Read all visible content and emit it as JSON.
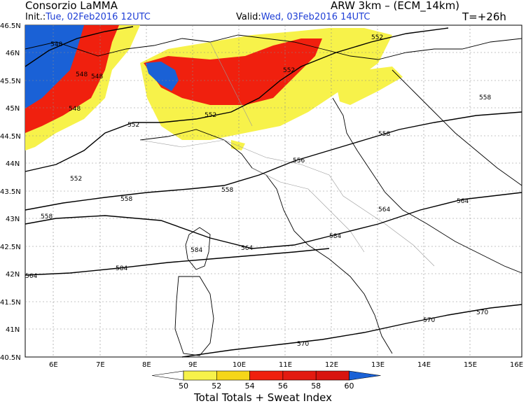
{
  "header": {
    "org": "Consorzio LaMMA",
    "model": "ARW 3km – (ECM_14km)",
    "init_label": "Init.:",
    "init_value": "Tue, 02Feb2016 12UTC",
    "valid_label": "Valid:",
    "valid_value": "Wed, 03Feb2016 14UTC",
    "lead": "T=+26h"
  },
  "axes": {
    "lat_labels": [
      "46.5N",
      "46N",
      "45.5N",
      "45N",
      "44.5N",
      "44N",
      "43.5N",
      "43N",
      "42.5N",
      "42N",
      "41.5N",
      "41N",
      "40.5N"
    ],
    "lon_labels": [
      "6E",
      "7E",
      "8E",
      "9E",
      "10E",
      "11E",
      "12E",
      "13E",
      "14E",
      "15E",
      "16E"
    ]
  },
  "isolines": [
    {
      "value": "548",
      "label": "548"
    },
    {
      "value": "552",
      "label": "552"
    },
    {
      "value": "556",
      "label": "556"
    },
    {
      "value": "558",
      "label": "558"
    },
    {
      "value": "564",
      "label": "564"
    },
    {
      "value": "570",
      "label": "570"
    },
    {
      "value": "584",
      "label": "584"
    }
  ],
  "legend": {
    "title": "Total Totals + Sweat Index",
    "ticks": [
      "50",
      "52",
      "54",
      "56",
      "58",
      "60"
    ],
    "colors": [
      "#f7f24a",
      "#f5d619",
      "#f0200e",
      "#e31a10",
      "#d8140f",
      "#1a61d6"
    ]
  }
}
